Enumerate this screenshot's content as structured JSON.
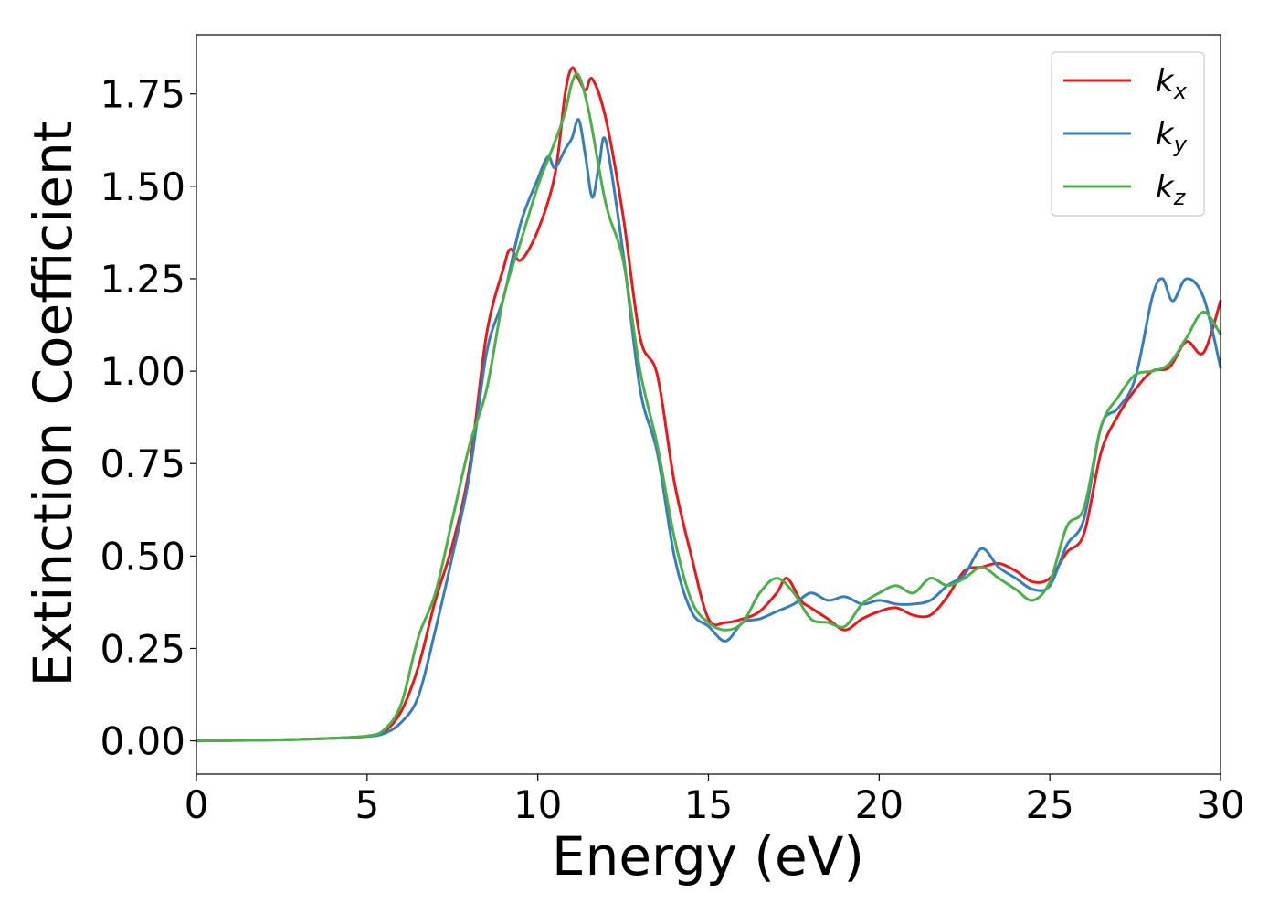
{
  "chart_data": {
    "type": "line",
    "xlabel": "Energy (eV)",
    "ylabel": "Extinction Coefficient",
    "xlim": [
      0,
      30
    ],
    "ylim": [
      -0.09,
      1.91
    ],
    "xticks": [
      0,
      5,
      10,
      15,
      20,
      25,
      30
    ],
    "xtick_labels": [
      "0",
      "5",
      "10",
      "15",
      "20",
      "25",
      "30"
    ],
    "yticks": [
      0.0,
      0.25,
      0.5,
      0.75,
      1.0,
      1.25,
      1.5,
      1.75
    ],
    "ytick_labels": [
      "0.00",
      "0.25",
      "0.50",
      "0.75",
      "1.00",
      "1.25",
      "1.50",
      "1.75"
    ],
    "grid": false,
    "legend_position": "top-right",
    "series": [
      {
        "name": "k_x",
        "label_base": "k",
        "label_sub": "x",
        "color": "#e41a1c",
        "points": [
          [
            0,
            0
          ],
          [
            1,
            0.001
          ],
          [
            2,
            0.002
          ],
          [
            3,
            0.004
          ],
          [
            4,
            0.007
          ],
          [
            5,
            0.013
          ],
          [
            5.5,
            0.025
          ],
          [
            6,
            0.08
          ],
          [
            6.5,
            0.2
          ],
          [
            7,
            0.38
          ],
          [
            7.5,
            0.53
          ],
          [
            8,
            0.74
          ],
          [
            8.5,
            1.1
          ],
          [
            9,
            1.28
          ],
          [
            9.2,
            1.33
          ],
          [
            9.5,
            1.3
          ],
          [
            10,
            1.38
          ],
          [
            10.5,
            1.53
          ],
          [
            10.8,
            1.75
          ],
          [
            11,
            1.82
          ],
          [
            11.2,
            1.79
          ],
          [
            11.4,
            1.76
          ],
          [
            11.6,
            1.79
          ],
          [
            12,
            1.68
          ],
          [
            12.5,
            1.42
          ],
          [
            13,
            1.09
          ],
          [
            13.5,
            0.99
          ],
          [
            14,
            0.7
          ],
          [
            14.5,
            0.5
          ],
          [
            15,
            0.33
          ],
          [
            15.5,
            0.32
          ],
          [
            16,
            0.33
          ],
          [
            16.5,
            0.35
          ],
          [
            17,
            0.4
          ],
          [
            17.3,
            0.44
          ],
          [
            17.7,
            0.38
          ],
          [
            18,
            0.36
          ],
          [
            18.5,
            0.33
          ],
          [
            19,
            0.3
          ],
          [
            19.5,
            0.33
          ],
          [
            20,
            0.35
          ],
          [
            20.5,
            0.36
          ],
          [
            21,
            0.34
          ],
          [
            21.5,
            0.34
          ],
          [
            22,
            0.39
          ],
          [
            22.5,
            0.46
          ],
          [
            23,
            0.47
          ],
          [
            23.5,
            0.48
          ],
          [
            24,
            0.46
          ],
          [
            24.5,
            0.43
          ],
          [
            25,
            0.44
          ],
          [
            25.5,
            0.51
          ],
          [
            26,
            0.56
          ],
          [
            26.5,
            0.78
          ],
          [
            27,
            0.88
          ],
          [
            27.5,
            0.95
          ],
          [
            28,
            1.0
          ],
          [
            28.5,
            1.01
          ],
          [
            29,
            1.08
          ],
          [
            29.5,
            1.05
          ],
          [
            30,
            1.19
          ]
        ]
      },
      {
        "name": "k_y",
        "label_base": "k",
        "label_sub": "y",
        "color": "#377eb8",
        "points": [
          [
            0,
            0
          ],
          [
            1,
            0.001
          ],
          [
            2,
            0.002
          ],
          [
            3,
            0.004
          ],
          [
            4,
            0.007
          ],
          [
            5,
            0.012
          ],
          [
            5.5,
            0.02
          ],
          [
            6,
            0.05
          ],
          [
            6.5,
            0.12
          ],
          [
            7,
            0.3
          ],
          [
            7.5,
            0.5
          ],
          [
            8,
            0.72
          ],
          [
            8.5,
            1.05
          ],
          [
            9,
            1.2
          ],
          [
            9.5,
            1.4
          ],
          [
            10,
            1.52
          ],
          [
            10.3,
            1.58
          ],
          [
            10.5,
            1.55
          ],
          [
            10.8,
            1.6
          ],
          [
            11,
            1.63
          ],
          [
            11.2,
            1.68
          ],
          [
            11.4,
            1.58
          ],
          [
            11.6,
            1.47
          ],
          [
            11.8,
            1.56
          ],
          [
            12,
            1.62
          ],
          [
            12.5,
            1.32
          ],
          [
            13,
            0.95
          ],
          [
            13.5,
            0.78
          ],
          [
            14,
            0.5
          ],
          [
            14.5,
            0.35
          ],
          [
            15,
            0.31
          ],
          [
            15.5,
            0.27
          ],
          [
            16,
            0.32
          ],
          [
            16.5,
            0.33
          ],
          [
            17,
            0.35
          ],
          [
            17.5,
            0.37
          ],
          [
            18,
            0.4
          ],
          [
            18.5,
            0.38
          ],
          [
            19,
            0.39
          ],
          [
            19.5,
            0.37
          ],
          [
            20,
            0.38
          ],
          [
            20.5,
            0.37
          ],
          [
            21,
            0.37
          ],
          [
            21.5,
            0.38
          ],
          [
            22,
            0.42
          ],
          [
            22.5,
            0.45
          ],
          [
            23,
            0.52
          ],
          [
            23.5,
            0.47
          ],
          [
            24,
            0.44
          ],
          [
            24.5,
            0.41
          ],
          [
            25,
            0.42
          ],
          [
            25.5,
            0.53
          ],
          [
            26,
            0.6
          ],
          [
            26.5,
            0.85
          ],
          [
            27,
            0.9
          ],
          [
            27.5,
            0.98
          ],
          [
            28,
            1.2
          ],
          [
            28.3,
            1.25
          ],
          [
            28.6,
            1.19
          ],
          [
            29,
            1.25
          ],
          [
            29.5,
            1.2
          ],
          [
            30,
            1.01
          ]
        ]
      },
      {
        "name": "k_z",
        "label_base": "k",
        "label_sub": "z",
        "color": "#4daf4a",
        "points": [
          [
            0,
            0
          ],
          [
            1,
            0.001
          ],
          [
            2,
            0.002
          ],
          [
            3,
            0.004
          ],
          [
            4,
            0.007
          ],
          [
            5,
            0.013
          ],
          [
            5.5,
            0.03
          ],
          [
            6,
            0.1
          ],
          [
            6.5,
            0.28
          ],
          [
            7,
            0.4
          ],
          [
            7.5,
            0.6
          ],
          [
            8,
            0.8
          ],
          [
            8.5,
            0.95
          ],
          [
            9,
            1.2
          ],
          [
            9.5,
            1.35
          ],
          [
            10,
            1.5
          ],
          [
            10.5,
            1.62
          ],
          [
            10.8,
            1.7
          ],
          [
            11,
            1.78
          ],
          [
            11.2,
            1.8
          ],
          [
            11.5,
            1.7
          ],
          [
            12,
            1.45
          ],
          [
            12.5,
            1.3
          ],
          [
            13,
            1.0
          ],
          [
            13.5,
            0.8
          ],
          [
            14,
            0.55
          ],
          [
            14.5,
            0.38
          ],
          [
            15,
            0.32
          ],
          [
            15.5,
            0.3
          ],
          [
            16,
            0.32
          ],
          [
            16.5,
            0.4
          ],
          [
            17,
            0.44
          ],
          [
            17.5,
            0.4
          ],
          [
            18,
            0.33
          ],
          [
            18.5,
            0.32
          ],
          [
            19,
            0.31
          ],
          [
            19.5,
            0.37
          ],
          [
            20,
            0.4
          ],
          [
            20.5,
            0.42
          ],
          [
            21,
            0.4
          ],
          [
            21.5,
            0.44
          ],
          [
            22,
            0.42
          ],
          [
            22.5,
            0.44
          ],
          [
            23,
            0.47
          ],
          [
            23.5,
            0.44
          ],
          [
            24,
            0.41
          ],
          [
            24.5,
            0.38
          ],
          [
            25,
            0.43
          ],
          [
            25.5,
            0.58
          ],
          [
            26,
            0.63
          ],
          [
            26.5,
            0.85
          ],
          [
            27,
            0.93
          ],
          [
            27.5,
            0.99
          ],
          [
            28,
            1.0
          ],
          [
            28.5,
            1.02
          ],
          [
            29,
            1.09
          ],
          [
            29.5,
            1.16
          ],
          [
            30,
            1.1
          ]
        ]
      }
    ]
  }
}
